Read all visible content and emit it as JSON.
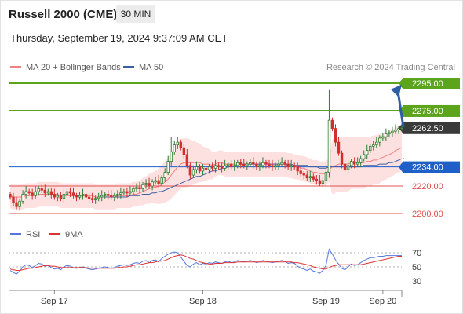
{
  "header": {
    "title": "Russell 2000 (CME)",
    "timeframe": "30 MIN",
    "timestamp": "Thursday, September 19, 2024 9:37:09 AM CET"
  },
  "legend": {
    "ma20_label": "MA 20 + Bollinger Bands",
    "ma50_label": "MA 50",
    "credit": "Research © 2024 Trading Central"
  },
  "rsi_legend": {
    "rsi_label": "RSI",
    "ma_label": "9MA"
  },
  "colors": {
    "up_candle": "#2e7d32",
    "down_candle": "#d32f2f",
    "ma20": "#f08080",
    "ma50": "#3b5fa0",
    "bollinger_fill": "#fde0e0",
    "resistance": "#5ba41c",
    "pivot": "#1e5fc8",
    "support": "#e05050",
    "last_price_tag": "#3a3a3a",
    "arrow": "#2e5fa6",
    "rsi_line": "#5577dd",
    "rsi_ma_line": "#dd3333"
  },
  "chart_data": [
    {
      "type": "candlestick",
      "title": "Russell 2000 (CME)",
      "ylim": [
        2195,
        2305
      ],
      "x_ticks": [
        "Sep 17",
        "Sep 18",
        "Sep 19",
        "Sep 20"
      ],
      "levels": [
        {
          "value": 2295.0,
          "label": "2295.00",
          "kind": "resistance"
        },
        {
          "value": 2275.0,
          "label": "2275.00",
          "kind": "resistance"
        },
        {
          "value": 2262.5,
          "label": "2262.50",
          "kind": "last"
        },
        {
          "value": 2234.0,
          "label": "2234.00",
          "kind": "pivot"
        },
        {
          "value": 2220.0,
          "label": "2220.00",
          "kind": "support"
        },
        {
          "value": 2200.0,
          "label": "2200.00",
          "kind": "support"
        }
      ],
      "close": [
        2212,
        2208,
        2205,
        2209,
        2214,
        2216,
        2215,
        2213,
        2216,
        2218,
        2217,
        2215,
        2216,
        2214,
        2212,
        2213,
        2211,
        2214,
        2216,
        2215,
        2213,
        2212,
        2213,
        2214,
        2212,
        2211,
        2210,
        2211,
        2212,
        2213,
        2214,
        2213,
        2212,
        2213,
        2214,
        2215,
        2216,
        2215,
        2216,
        2218,
        2219,
        2218,
        2221,
        2222,
        2220,
        2223,
        2224,
        2222,
        2226,
        2230,
        2238,
        2245,
        2250,
        2252,
        2248,
        2243,
        2235,
        2228,
        2232,
        2234,
        2231,
        2233,
        2232,
        2234,
        2233,
        2235,
        2234,
        2233,
        2235,
        2236,
        2234,
        2235,
        2237,
        2236,
        2235,
        2236,
        2237,
        2236,
        2234,
        2235,
        2237,
        2236,
        2235,
        2234,
        2235,
        2236,
        2237,
        2236,
        2234,
        2235,
        2234,
        2231,
        2229,
        2228,
        2226,
        2227,
        2225,
        2224,
        2222,
        2224,
        2230,
        2268,
        2262,
        2252,
        2244,
        2236,
        2232,
        2235,
        2238,
        2236,
        2237,
        2240,
        2243,
        2246,
        2249,
        2250,
        2252,
        2255,
        2256,
        2258,
        2259,
        2260,
        2261,
        2262,
        2262.5
      ],
      "ma20": [
        2213,
        2212,
        2212,
        2212,
        2212,
        2213,
        2213,
        2213,
        2213,
        2214,
        2214,
        2214,
        2214,
        2214,
        2214,
        2214,
        2213,
        2213,
        2213,
        2213,
        2213,
        2213,
        2213,
        2213,
        2213,
        2213,
        2213,
        2212,
        2212,
        2212,
        2212,
        2212,
        2212,
        2212,
        2213,
        2213,
        2213,
        2213,
        2213,
        2214,
        2214,
        2215,
        2216,
        2217,
        2218,
        2219,
        2219,
        2220,
        2221,
        2223,
        2225,
        2228,
        2231,
        2234,
        2236,
        2237,
        2237,
        2237,
        2237,
        2237,
        2237,
        2236,
        2236,
        2236,
        2235,
        2236,
        2237,
        2237,
        2236,
        2236,
        2236,
        2236,
        2236,
        2236,
        2236,
        2236,
        2236,
        2236,
        2236,
        2236,
        2236,
        2236,
        2236,
        2236,
        2236,
        2236,
        2236,
        2236,
        2235,
        2235,
        2234,
        2234,
        2233,
        2233,
        2232,
        2231,
        2230,
        2230,
        2229,
        2229,
        2229,
        2232,
        2234,
        2235,
        2236,
        2236,
        2236,
        2236,
        2237,
        2237,
        2237,
        2237,
        2237,
        2238,
        2238,
        2239,
        2239,
        2240,
        2241,
        2242,
        2243,
        2244,
        2246,
        2247,
        2248
      ],
      "ma50": [
        null,
        null,
        null,
        null,
        null,
        null,
        null,
        null,
        null,
        null,
        null,
        null,
        null,
        null,
        null,
        null,
        null,
        null,
        null,
        null,
        null,
        null,
        null,
        null,
        null,
        null,
        null,
        null,
        null,
        null,
        2212,
        2212,
        2212,
        2212,
        2212,
        2212,
        2212,
        2212,
        2213,
        2213,
        2213,
        2213,
        2214,
        2214,
        2214,
        2215,
        2215,
        2216,
        2216,
        2217,
        2218,
        2219,
        2220,
        2221,
        2222,
        2223,
        2224,
        2225,
        2226,
        2227,
        2227,
        2228,
        2229,
        2230,
        2231,
        2231,
        2232,
        2233,
        2233,
        2234,
        2234,
        2235,
        2235,
        2236,
        2236,
        2236,
        2236,
        2236,
        2236,
        2236,
        2236,
        2236,
        2236,
        2236,
        2236,
        2236,
        2236,
        2236,
        2236,
        2236,
        2235,
        2235,
        2235,
        2235,
        2235,
        2234,
        2234,
        2234,
        2233,
        2233,
        2233,
        2234,
        2234,
        2234,
        2234,
        2234,
        2234,
        2234,
        2234,
        2234,
        2234,
        2234,
        2235,
        2235,
        2235,
        2235,
        2235,
        2236,
        2236,
        2236,
        2237,
        2237,
        2238,
        2239,
        2240
      ],
      "boll_width": [
        9,
        9,
        9,
        9,
        9,
        9,
        9,
        9,
        9,
        9,
        9,
        9,
        9,
        9,
        9,
        9,
        9,
        9,
        9,
        9,
        9,
        9,
        9,
        9,
        9,
        9,
        9,
        9,
        9,
        9,
        9,
        9,
        9,
        9,
        9,
        9,
        9,
        9,
        9,
        9,
        9,
        9,
        10,
        10,
        11,
        11,
        12,
        13,
        14,
        15,
        16,
        17,
        18,
        18,
        18,
        18,
        18,
        17,
        16,
        15,
        14,
        13,
        12,
        11,
        10,
        9,
        9,
        9,
        9,
        9,
        9,
        9,
        9,
        9,
        9,
        9,
        9,
        9,
        9,
        9,
        9,
        9,
        9,
        9,
        9,
        9,
        9,
        9,
        9,
        9,
        9,
        9,
        9,
        9,
        9,
        9,
        9,
        9,
        9,
        9,
        9,
        9,
        20,
        20,
        20,
        20,
        20,
        20,
        19,
        19,
        19,
        19,
        19,
        18,
        18,
        18,
        18,
        18,
        17,
        17,
        17,
        17,
        17,
        17,
        17
      ]
    },
    {
      "type": "line",
      "title": "RSI",
      "ylim": [
        20,
        80
      ],
      "y_ticks": [
        70,
        50,
        30
      ],
      "series": [
        {
          "name": "RSI",
          "values": [
            45,
            42,
            40,
            44,
            50,
            53,
            52,
            49,
            52,
            55,
            54,
            51,
            52,
            49,
            47,
            48,
            46,
            50,
            52,
            51,
            49,
            48,
            49,
            50,
            48,
            47,
            46,
            47,
            48,
            49,
            50,
            49,
            48,
            49,
            51,
            52,
            53,
            52,
            53,
            55,
            56,
            55,
            58,
            59,
            56,
            59,
            60,
            57,
            62,
            65,
            68,
            70,
            71,
            70,
            64,
            58,
            52,
            50,
            54,
            56,
            53,
            55,
            54,
            56,
            55,
            57,
            56,
            55,
            57,
            58,
            56,
            57,
            59,
            58,
            57,
            58,
            59,
            58,
            56,
            57,
            59,
            58,
            57,
            56,
            57,
            58,
            59,
            58,
            55,
            56,
            55,
            51,
            48,
            47,
            45,
            47,
            44,
            43,
            41,
            45,
            52,
            75,
            68,
            60,
            54,
            48,
            46,
            50,
            54,
            52,
            53,
            56,
            59,
            61,
            63,
            63,
            64,
            65,
            65,
            66,
            66,
            66,
            66,
            66,
            66
          ]
        },
        {
          "name": "9MA",
          "values": [
            47,
            46,
            45,
            45,
            46,
            47,
            48,
            48,
            49,
            50,
            51,
            52,
            52,
            51,
            51,
            50,
            49,
            49,
            49,
            49,
            49,
            49,
            49,
            49,
            49,
            48,
            48,
            48,
            48,
            48,
            48,
            48,
            48,
            48,
            49,
            49,
            50,
            50,
            51,
            52,
            53,
            53,
            54,
            55,
            56,
            56,
            57,
            58,
            58,
            59,
            61,
            63,
            65,
            66,
            67,
            66,
            64,
            62,
            61,
            59,
            57,
            56,
            55,
            54,
            54,
            55,
            55,
            55,
            56,
            56,
            56,
            56,
            57,
            57,
            57,
            57,
            57,
            57,
            57,
            57,
            57,
            57,
            57,
            57,
            57,
            57,
            57,
            57,
            57,
            57,
            56,
            56,
            55,
            54,
            53,
            52,
            50,
            49,
            48,
            47,
            47,
            49,
            51,
            52,
            53,
            53,
            53,
            53,
            53,
            53,
            53,
            53,
            54,
            55,
            56,
            57,
            58,
            59,
            60,
            61,
            62,
            63,
            64,
            65,
            65
          ]
        }
      ]
    }
  ]
}
